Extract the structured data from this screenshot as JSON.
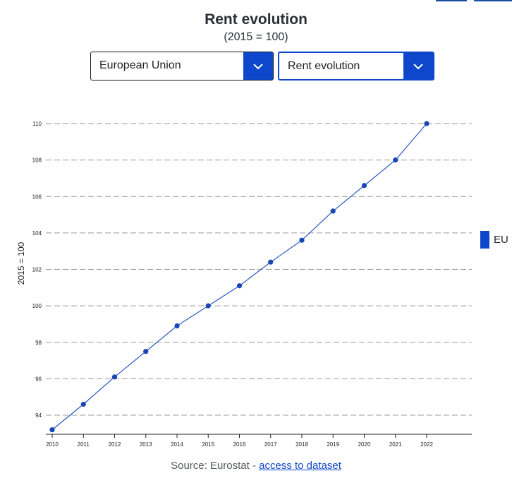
{
  "header": {
    "title": "Rent evolution",
    "subtitle": "(2015 = 100)"
  },
  "filters": {
    "country": {
      "selected": "European Union"
    },
    "indicator": {
      "selected": "Rent evolution"
    }
  },
  "legend": {
    "label": "EU"
  },
  "footer": {
    "source_prefix": "Source: Eurostat - ",
    "link_label": "access to dataset"
  },
  "colors": {
    "accent": "#0e47cb",
    "series": "#2855c4"
  },
  "chart_data": {
    "type": "line",
    "title": "Rent evolution",
    "subtitle": "(2015 = 100)",
    "xlabel": "",
    "ylabel": "2015 = 100",
    "x": [
      "2010",
      "2011",
      "2012",
      "2013",
      "2014",
      "2015",
      "2016",
      "2017",
      "2018",
      "2019",
      "2020",
      "2021",
      "2022"
    ],
    "series": [
      {
        "name": "EU",
        "values": [
          93.2,
          94.6,
          96.1,
          97.5,
          98.9,
          100.0,
          101.1,
          102.4,
          103.6,
          105.2,
          106.6,
          108.0,
          110.0
        ]
      }
    ],
    "yticks": [
      "94",
      "96",
      "98",
      "100",
      "102",
      "104",
      "106",
      "108",
      "110"
    ],
    "ylim": [
      93.2,
      110
    ],
    "grid": true,
    "legend_position": "right"
  }
}
